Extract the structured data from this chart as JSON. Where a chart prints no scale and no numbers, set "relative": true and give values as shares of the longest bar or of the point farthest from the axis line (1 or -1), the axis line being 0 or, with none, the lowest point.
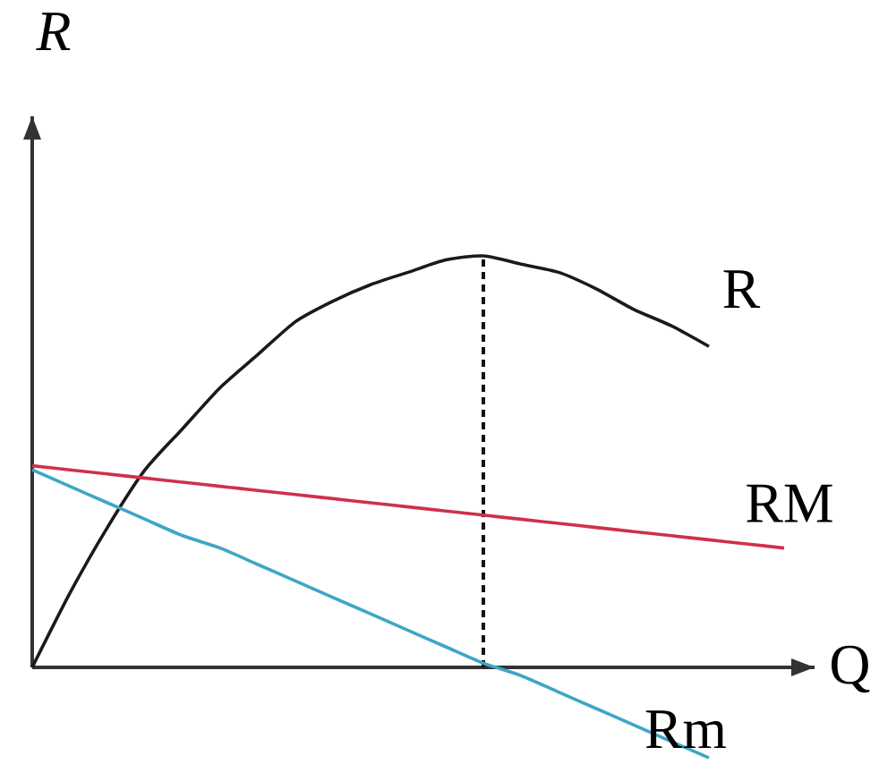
{
  "chart_data": {
    "type": "line",
    "relative": true,
    "xlabel": "Q",
    "ylabel": "R",
    "categories": [
      null,
      null,
      null,
      null,
      null,
      null,
      null,
      null,
      null,
      null,
      null,
      null,
      null,
      null,
      null,
      null,
      null,
      null,
      null,
      null,
      null
    ],
    "series": [
      {
        "name": "R",
        "color": "#1a1a1a",
        "values": [
          0,
          0.18,
          0.34,
          0.48,
          0.58,
          0.68,
          0.76,
          0.84,
          0.89,
          0.93,
          0.96,
          0.99,
          1,
          0.98,
          0.96,
          0.92,
          0.87,
          0.83,
          0.78,
          null,
          null
        ]
      },
      {
        "name": "RM",
        "color": "#d0304a",
        "values": [
          0.49,
          0.48,
          0.47,
          0.46,
          0.45,
          0.44,
          0.43,
          0.42,
          0.41,
          0.4,
          0.39,
          0.38,
          0.37,
          0.36,
          0.35,
          0.34,
          0.33,
          0.32,
          0.31,
          0.3,
          0.29
        ]
      },
      {
        "name": "Rm",
        "color": "#3ea6c6",
        "values": [
          0.48,
          0.44,
          0.4,
          0.36,
          0.32,
          0.29,
          0.25,
          0.21,
          0.17,
          0.13,
          0.09,
          0.05,
          0.01,
          -0.02,
          -0.06,
          -0.1,
          -0.14,
          -0.18,
          -0.22,
          null,
          null
        ]
      }
    ]
  }
}
